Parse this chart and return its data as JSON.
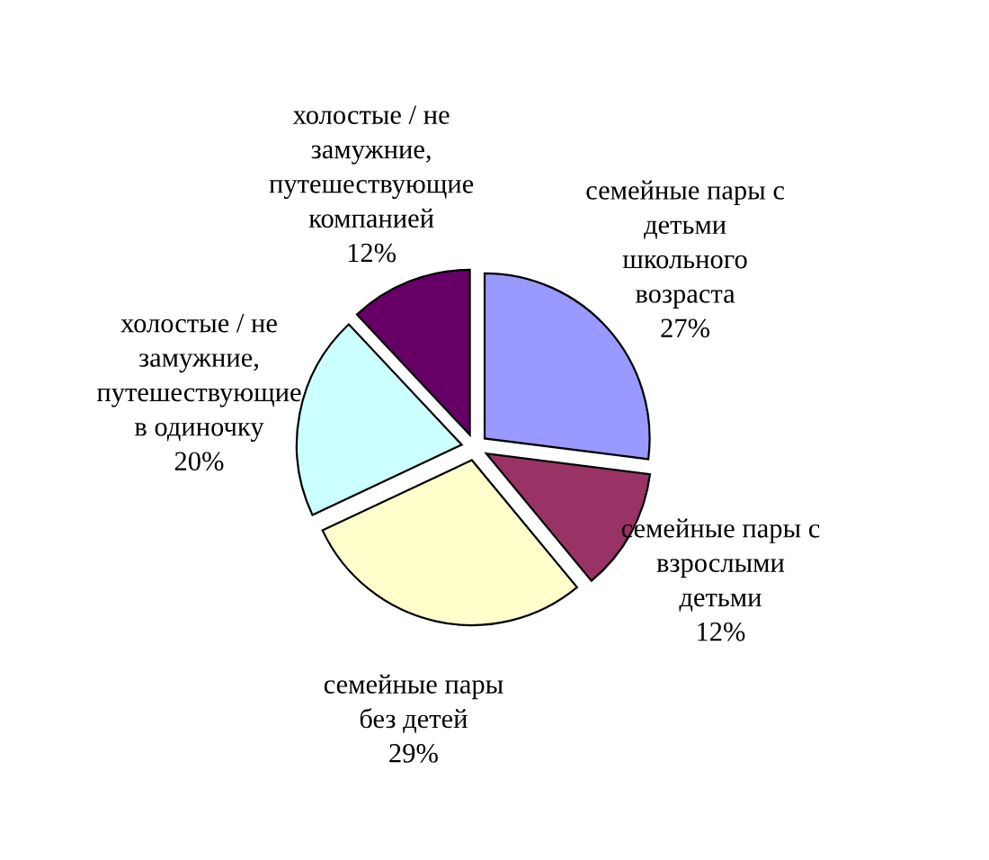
{
  "chart_data": {
    "type": "pie",
    "categories": [
      "семейные пары с\nдетьми\nшкольного\nвозраста",
      "семейные пары с\nвзрослыми\nдетьми",
      "семейные пары\nбез детей",
      "холостые / не\nзамужние,\nпутешествующие\nв одиночку",
      "холостые / не\nзамужние,\nпутешествующие\nкомпанией"
    ],
    "values": [
      27,
      12,
      29,
      20,
      12
    ],
    "value_labels": [
      "27%",
      "12%",
      "29%",
      "20%",
      "12%"
    ],
    "colors": [
      "#9999ff",
      "#993366",
      "#ffffcc",
      "#ccffff",
      "#660066"
    ]
  }
}
